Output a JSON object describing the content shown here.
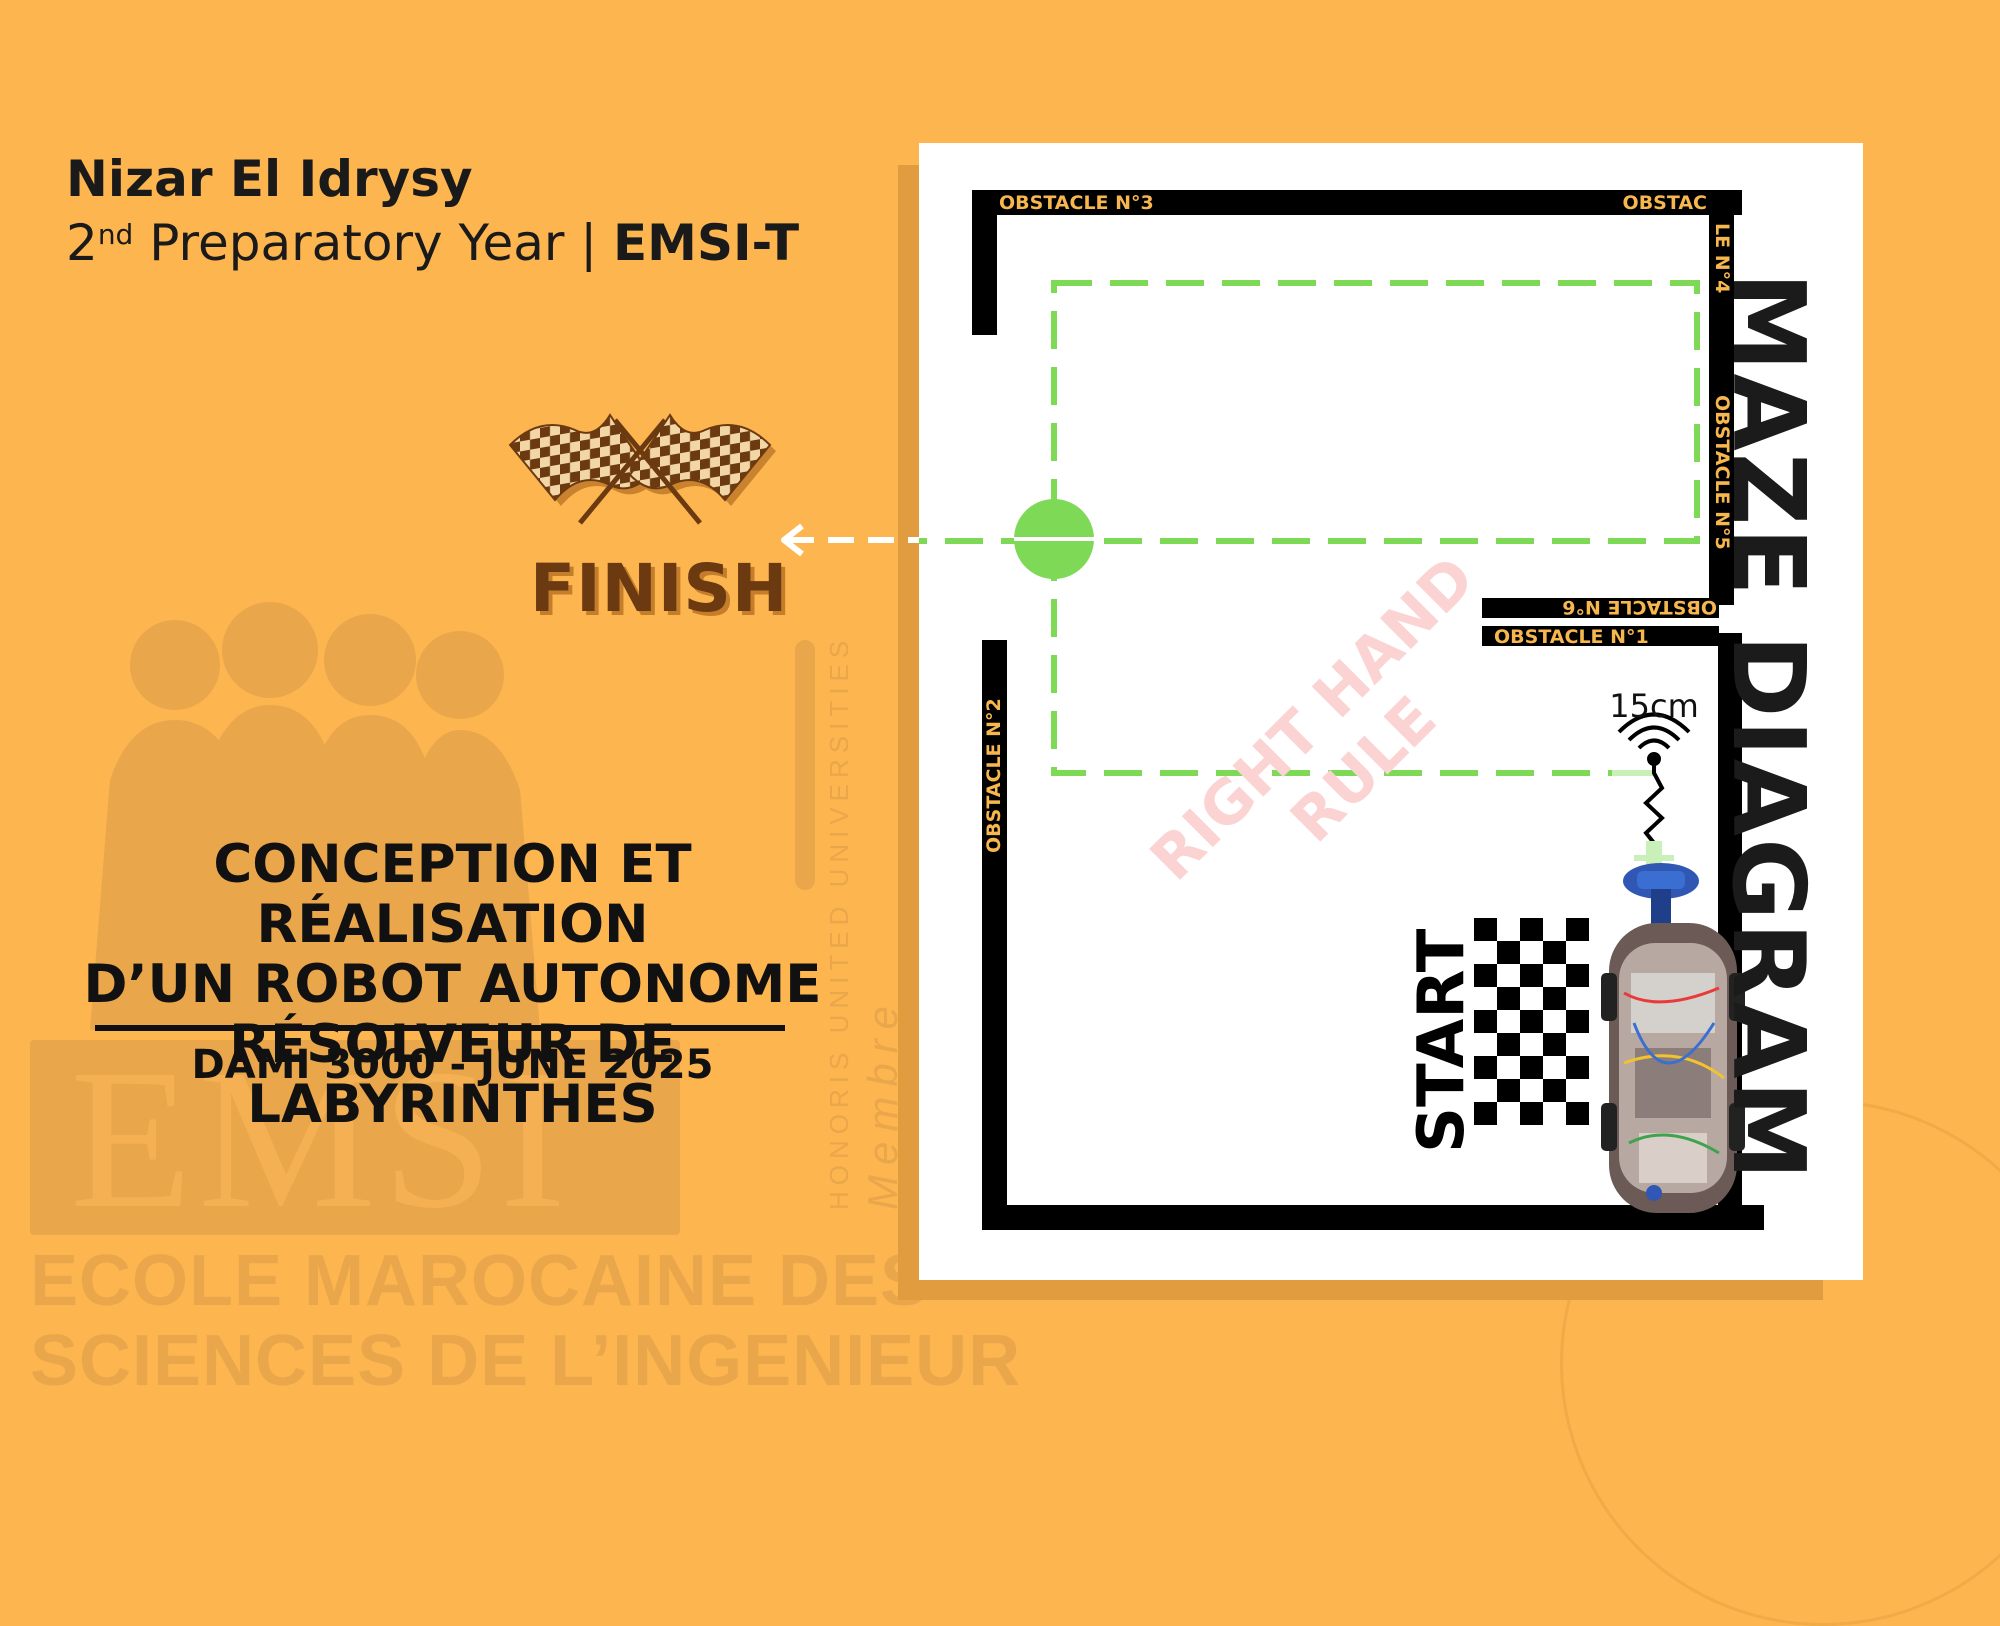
{
  "header": {
    "author": "Nizar El Idrysy",
    "year_num": "2",
    "year_sup": "nd",
    "program": " Preparatory Year | ",
    "school_code": "EMSI-T"
  },
  "finish": {
    "label": "FINISH"
  },
  "project": {
    "title_lines": [
      "CONCEPTION ET RÉALISATION",
      "D’UN ROBOT AUTONOME",
      "RÉSOLVEUR DE LABYRINTHES"
    ],
    "event": "DAMI 3000 - JUNE 2025"
  },
  "watermark": {
    "logo": "EMSI",
    "school_line1": "ECOLE MAROCAINE DES",
    "school_line2": "SCIENCES DE L’INGENIEUR",
    "member_line1": "Membre",
    "member_line2": "HONORIS UNITED UNIVERSITIES"
  },
  "diagram": {
    "title": "MAZE DIAGRAM",
    "rule_label_line1": "RIGHT HAND",
    "rule_label_line2": "RULE",
    "start_label": "START",
    "sensor_range": "15cm",
    "obstacles": {
      "n1": "OBSTACLE N°1",
      "n2": "OBSTACLE N°2",
      "n3": "OBSTACLE N°3",
      "n4_part1": "OBSTAC",
      "n4_part2": "LE N°4",
      "n5": "OBSTACLE N°5",
      "n6": "OBSTACLE N°6"
    },
    "colors": {
      "wall": "#000000",
      "obstacle_label": "#f7b74e",
      "path": "#7ed957",
      "rule_watermark": "#fbd3d3"
    }
  }
}
